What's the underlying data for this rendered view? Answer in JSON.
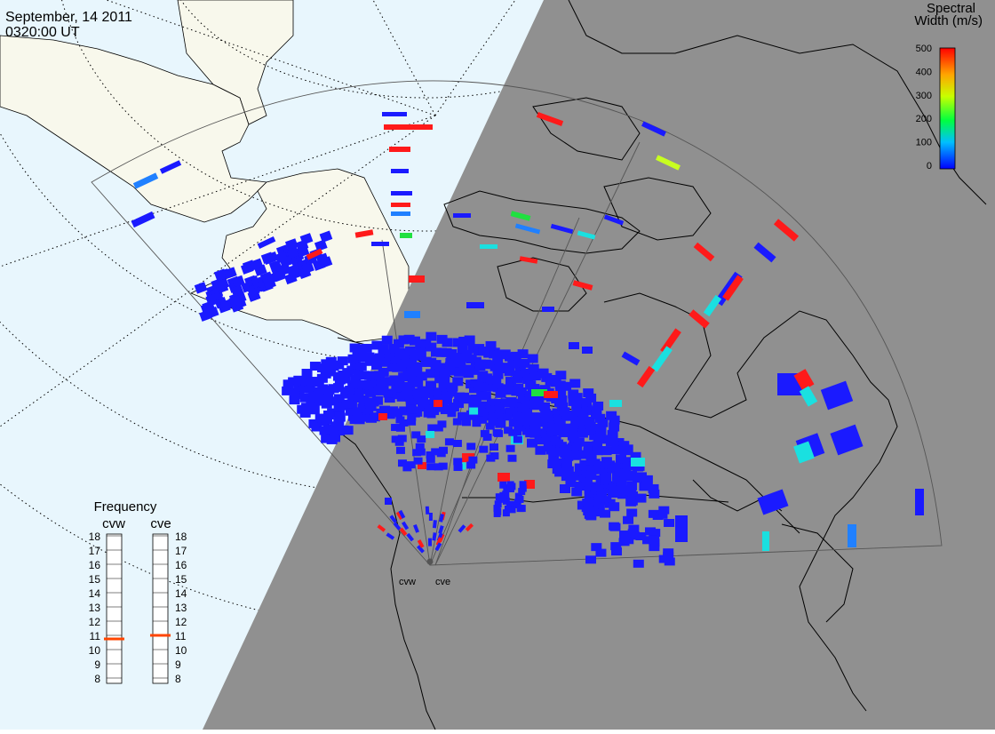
{
  "header": {
    "date": "September, 14 2011",
    "time": "0320:00 UT"
  },
  "colorbar": {
    "title_line1": "Spectral",
    "title_line2": "Width (m/s)",
    "ticks": [
      "500",
      "400",
      "300",
      "200",
      "100",
      "0"
    ],
    "stops": [
      "#ff0000",
      "#ff8c00",
      "#ffff00",
      "#00ff00",
      "#00ffff",
      "#0000ff"
    ]
  },
  "frequency_panel": {
    "title": "Frequency",
    "radars": [
      {
        "code": "cvw",
        "freq_mhz": 10.75
      },
      {
        "code": "cve",
        "freq_mhz": 11.0
      }
    ],
    "ticks": [
      "18",
      "17",
      "16",
      "15",
      "14",
      "13",
      "12",
      "11",
      "10",
      "9",
      "8"
    ],
    "marker_color": "#ff4500"
  },
  "radar_sites": [
    {
      "code": "cvw"
    },
    {
      "code": "cve"
    }
  ],
  "colors": {
    "ocean_day": "#e8f6fd",
    "land_day": "#f8f8ec",
    "night": "#909090",
    "echo_low": "#1a1aff"
  }
}
